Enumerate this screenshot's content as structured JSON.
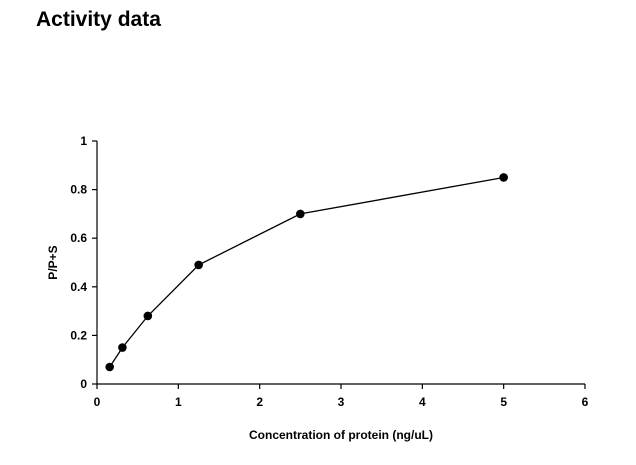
{
  "page": {
    "heading": "Activity data"
  },
  "chart_data": {
    "type": "line",
    "title": "",
    "xlabel": "Concentration of protein (ng/uL)",
    "ylabel": "P/P+S",
    "xlim": [
      0,
      6
    ],
    "ylim": [
      0,
      1
    ],
    "xticks": [
      0,
      1,
      2,
      3,
      4,
      5,
      6
    ],
    "yticks": [
      0,
      0.2,
      0.4,
      0.6,
      0.8,
      1
    ],
    "xtick_labels": [
      "0",
      "1",
      "2",
      "3",
      "4",
      "5",
      "6"
    ],
    "ytick_labels": [
      "0",
      "0.2",
      "0.4",
      "0.6",
      "0.8",
      "1"
    ],
    "grid": false,
    "legend": "none",
    "series": [
      {
        "color": "#000000",
        "marker": "filled-circle",
        "x": [
          0.156,
          0.3125,
          0.625,
          1.25,
          2.5,
          5
        ],
        "y": [
          0.07,
          0.15,
          0.28,
          0.49,
          0.7,
          0.85
        ]
      }
    ]
  }
}
